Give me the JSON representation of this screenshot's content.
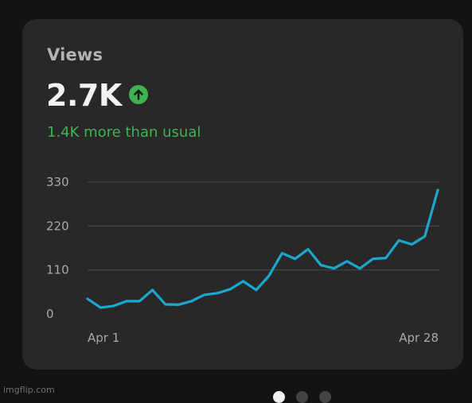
{
  "card": {
    "title": "Views",
    "value": "2.7K",
    "trend_icon": "arrow-up-circle-icon",
    "trend_color": "#3fb34f",
    "delta_text": "1.4K more than usual"
  },
  "colors": {
    "background": "#131313",
    "card_background": "#282828",
    "line": "#1ba8cf",
    "accent_green": "#3fb34f"
  },
  "chart_data": {
    "type": "line",
    "x_tick_labels": [
      "Apr 1",
      "Apr 28"
    ],
    "y_ticks": [
      0,
      110,
      220,
      330
    ],
    "ylim": [
      0,
      330
    ],
    "grid": true,
    "series": [
      {
        "values": [
          38,
          16,
          20,
          32,
          32,
          60,
          24,
          23,
          32,
          48,
          52,
          62,
          82,
          60,
          96,
          152,
          138,
          162,
          122,
          114,
          132,
          114,
          138,
          140,
          184,
          174,
          194,
          310
        ]
      }
    ]
  },
  "pager": {
    "count": 3,
    "active_index": 0
  },
  "watermark": "imgflip.com"
}
